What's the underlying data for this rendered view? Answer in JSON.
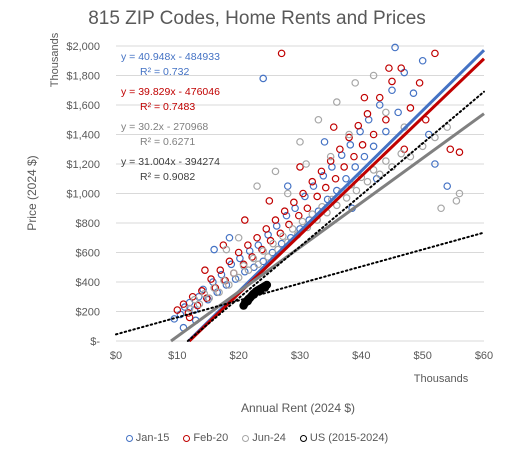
{
  "chart_data": {
    "type": "scatter",
    "title": "815 ZIP Codes, Home Rents and Prices",
    "xlabel": "Annual Rent (2024 $)",
    "ylabel": "Price (2024 $)",
    "x_units_label": "Thousands",
    "y_units_label": "Thousands",
    "xlim": [
      0,
      60
    ],
    "ylim": [
      0,
      2000
    ],
    "x_ticks": [
      0,
      10,
      20,
      30,
      40,
      50,
      60
    ],
    "x_tick_labels": [
      "$0",
      "$10",
      "$20",
      "$30",
      "$40",
      "$50",
      "$60"
    ],
    "y_ticks": [
      0,
      200,
      400,
      600,
      800,
      1000,
      1200,
      1400,
      1600,
      1800,
      2000
    ],
    "y_tick_labels": [
      "$-",
      "$200",
      "$400",
      "$600",
      "$800",
      "$1,000",
      "$1,200",
      "$1,400",
      "$1,600",
      "$1,800",
      "$2,000"
    ],
    "grid": "horizontal",
    "legend_position": "bottom",
    "series": [
      {
        "name": "Jan-15",
        "color": "#4472C4",
        "equation": "y = 40.948x - 484933",
        "r_squared": "R² = 0.732",
        "trend": {
          "slope": 40.948,
          "intercept": -484.933
        },
        "points": [
          [
            10.5,
            180
          ],
          [
            11.2,
            230
          ],
          [
            12.0,
            260
          ],
          [
            12.8,
            210
          ],
          [
            13.5,
            300
          ],
          [
            14.2,
            350
          ],
          [
            15.0,
            280
          ],
          [
            15.8,
            400
          ],
          [
            16.5,
            330
          ],
          [
            17.2,
            450
          ],
          [
            18.0,
            380
          ],
          [
            18.8,
            520
          ],
          [
            19.5,
            420
          ],
          [
            20.2,
            560
          ],
          [
            21.0,
            470
          ],
          [
            21.8,
            610
          ],
          [
            22.5,
            500
          ],
          [
            23.2,
            650
          ],
          [
            24.0,
            540
          ],
          [
            24.8,
            720
          ],
          [
            25.5,
            600
          ],
          [
            26.2,
            780
          ],
          [
            27.0,
            660
          ],
          [
            27.8,
            850
          ],
          [
            28.5,
            700
          ],
          [
            29.2,
            900
          ],
          [
            30.0,
            760
          ],
          [
            30.8,
            980
          ],
          [
            31.5,
            820
          ],
          [
            32.2,
            1050
          ],
          [
            33.0,
            880
          ],
          [
            33.8,
            1120
          ],
          [
            34.5,
            960
          ],
          [
            35.2,
            1180
          ],
          [
            36.0,
            1020
          ],
          [
            36.8,
            1260
          ],
          [
            37.5,
            1100
          ],
          [
            38.2,
            1330
          ],
          [
            39.0,
            1180
          ],
          [
            39.8,
            1420
          ],
          [
            40.5,
            1250
          ],
          [
            41.2,
            1500
          ],
          [
            42.0,
            1320
          ],
          [
            43.0,
            1600
          ],
          [
            44.0,
            1420
          ],
          [
            45.0,
            1700
          ],
          [
            46.0,
            1550
          ],
          [
            47.0,
            1820
          ],
          [
            48.5,
            1680
          ],
          [
            50.0,
            1900
          ],
          [
            52.0,
            1200
          ],
          [
            54.0,
            1050
          ],
          [
            24.0,
            1780
          ],
          [
            9.5,
            150
          ],
          [
            11.0,
            90
          ],
          [
            13.0,
            140
          ],
          [
            16.0,
            620
          ],
          [
            18.5,
            700
          ],
          [
            28.0,
            1050
          ],
          [
            34.0,
            1350
          ],
          [
            38.5,
            900
          ],
          [
            42.5,
            1100
          ],
          [
            45.5,
            1990
          ],
          [
            51.0,
            1400
          ]
        ]
      },
      {
        "name": "Feb-20",
        "color": "#C00000",
        "equation": "y = 39.829x - 476046",
        "r_squared": "R² = 0.7483",
        "trend": {
          "slope": 39.829,
          "intercept": -476.046
        },
        "points": [
          [
            11.0,
            250
          ],
          [
            11.8,
            190
          ],
          [
            12.5,
            300
          ],
          [
            13.3,
            240
          ],
          [
            14.0,
            340
          ],
          [
            14.8,
            290
          ],
          [
            15.5,
            420
          ],
          [
            16.2,
            360
          ],
          [
            17.0,
            480
          ],
          [
            17.8,
            410
          ],
          [
            18.5,
            540
          ],
          [
            19.2,
            460
          ],
          [
            20.0,
            600
          ],
          [
            20.8,
            520
          ],
          [
            21.5,
            650
          ],
          [
            22.2,
            570
          ],
          [
            23.0,
            700
          ],
          [
            23.8,
            620
          ],
          [
            24.5,
            760
          ],
          [
            25.2,
            680
          ],
          [
            26.0,
            820
          ],
          [
            26.8,
            730
          ],
          [
            27.5,
            880
          ],
          [
            28.2,
            790
          ],
          [
            29.0,
            940
          ],
          [
            29.8,
            850
          ],
          [
            30.5,
            1000
          ],
          [
            31.2,
            900
          ],
          [
            32.0,
            1080
          ],
          [
            32.8,
            980
          ],
          [
            33.5,
            1150
          ],
          [
            34.2,
            1040
          ],
          [
            35.0,
            1220
          ],
          [
            35.8,
            1100
          ],
          [
            36.5,
            1300
          ],
          [
            37.2,
            1180
          ],
          [
            38.0,
            1380
          ],
          [
            38.8,
            1250
          ],
          [
            39.5,
            1460
          ],
          [
            40.2,
            1330
          ],
          [
            41.0,
            1540
          ],
          [
            42.0,
            1400
          ],
          [
            43.0,
            1650
          ],
          [
            44.0,
            1500
          ],
          [
            45.0,
            1760
          ],
          [
            46.5,
            1850
          ],
          [
            48.0,
            1580
          ],
          [
            49.5,
            1750
          ],
          [
            52.0,
            1950
          ],
          [
            54.5,
            1300
          ],
          [
            56.0,
            1280
          ],
          [
            27.0,
            1950
          ],
          [
            10.0,
            210
          ],
          [
            12.0,
            160
          ],
          [
            14.5,
            480
          ],
          [
            17.5,
            650
          ],
          [
            21.0,
            820
          ],
          [
            25.0,
            950
          ],
          [
            30.0,
            1180
          ],
          [
            35.5,
            1450
          ],
          [
            40.5,
            1650
          ],
          [
            44.5,
            1850
          ],
          [
            47.0,
            1300
          ],
          [
            50.5,
            1500
          ]
        ]
      },
      {
        "name": "Jun-24",
        "color": "#A6A6A6",
        "equation": "y = 30.2x - 270968",
        "r_squared": "R² = 0.6271",
        "trend": {
          "slope": 30.2,
          "intercept": -270.968
        },
        "points": [
          [
            12.0,
            220
          ],
          [
            12.8,
            280
          ],
          [
            13.6,
            250
          ],
          [
            14.4,
            320
          ],
          [
            15.2,
            290
          ],
          [
            16.0,
            360
          ],
          [
            16.8,
            330
          ],
          [
            17.6,
            410
          ],
          [
            18.4,
            380
          ],
          [
            19.2,
            460
          ],
          [
            20.0,
            430
          ],
          [
            20.8,
            510
          ],
          [
            21.6,
            480
          ],
          [
            22.4,
            560
          ],
          [
            23.2,
            520
          ],
          [
            24.0,
            610
          ],
          [
            24.8,
            570
          ],
          [
            25.6,
            660
          ],
          [
            26.4,
            620
          ],
          [
            27.2,
            710
          ],
          [
            28.0,
            670
          ],
          [
            28.8,
            760
          ],
          [
            29.6,
            720
          ],
          [
            30.4,
            810
          ],
          [
            31.2,
            770
          ],
          [
            32.0,
            860
          ],
          [
            32.8,
            820
          ],
          [
            33.6,
            910
          ],
          [
            34.4,
            870
          ],
          [
            35.2,
            960
          ],
          [
            36.0,
            920
          ],
          [
            36.8,
            1010
          ],
          [
            37.6,
            970
          ],
          [
            38.4,
            1060
          ],
          [
            39.2,
            1020
          ],
          [
            40.0,
            1110
          ],
          [
            41.0,
            1080
          ],
          [
            42.0,
            1160
          ],
          [
            43.0,
            1130
          ],
          [
            44.0,
            1220
          ],
          [
            45.0,
            1180
          ],
          [
            46.5,
            1270
          ],
          [
            48.0,
            1250
          ],
          [
            50.0,
            1320
          ],
          [
            52.0,
            1380
          ],
          [
            54.0,
            1450
          ],
          [
            56.0,
            1000
          ],
          [
            23.0,
            1050
          ],
          [
            26.0,
            1150
          ],
          [
            30.0,
            1350
          ],
          [
            33.0,
            1500
          ],
          [
            36.0,
            1620
          ],
          [
            39.0,
            1750
          ],
          [
            42.0,
            1800
          ],
          [
            35.0,
            1250
          ],
          [
            20.0,
            700
          ],
          [
            18.0,
            620
          ],
          [
            28.0,
            1000
          ],
          [
            31.0,
            1200
          ],
          [
            38.0,
            1400
          ],
          [
            44.0,
            1550
          ],
          [
            47.0,
            1450
          ],
          [
            53.0,
            900
          ],
          [
            55.5,
            950
          ]
        ]
      },
      {
        "name": "US (2015-2024)",
        "color": "#000000",
        "equation": "y = 31.004x - 394274",
        "r_squared": "R² = 0.9082",
        "trend": {
          "slope": 31.004,
          "intercept": -394.274
        },
        "points": [
          [
            20.8,
            240
          ],
          [
            21.0,
            255
          ],
          [
            21.2,
            265
          ],
          [
            21.4,
            275
          ],
          [
            21.6,
            285
          ],
          [
            21.8,
            290
          ],
          [
            22.0,
            300
          ],
          [
            22.2,
            310
          ],
          [
            22.4,
            320
          ],
          [
            22.6,
            325
          ],
          [
            22.8,
            335
          ],
          [
            23.0,
            340
          ],
          [
            23.2,
            345
          ],
          [
            23.4,
            350
          ],
          [
            23.6,
            355
          ],
          [
            23.8,
            360
          ],
          [
            24.0,
            365
          ],
          [
            24.2,
            370
          ],
          [
            24.4,
            375
          ],
          [
            24.6,
            380
          ],
          [
            21.5,
            270
          ],
          [
            22.5,
            315
          ],
          [
            23.5,
            340
          ],
          [
            24.3,
            362
          ]
        ]
      }
    ],
    "reference_lines": [
      {
        "style": "dotted",
        "color": "#000000",
        "slope": 35,
        "intercept": -410
      },
      {
        "style": "dotted",
        "color": "#000000",
        "slope": 11.5,
        "intercept": 45
      }
    ]
  }
}
